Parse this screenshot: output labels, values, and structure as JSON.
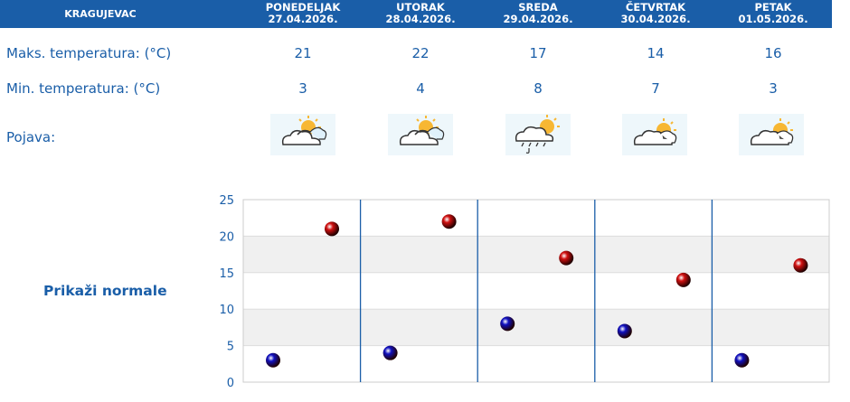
{
  "header": {
    "city": "KRAGUJEVAC",
    "days": [
      {
        "name": "PONEDELJAK",
        "date": "27.04.2026."
      },
      {
        "name": "UTORAK",
        "date": "28.04.2026."
      },
      {
        "name": "SREDA",
        "date": "29.04.2026."
      },
      {
        "name": "ČETVRTAK",
        "date": "30.04.2026."
      },
      {
        "name": "PETAK",
        "date": "01.05.2026."
      }
    ]
  },
  "rows": {
    "max_label": "Maks. temperatura: (°C)",
    "min_label": "Min. temperatura: (°C)",
    "phen_label": "Pojava:"
  },
  "forecast": [
    {
      "max": "21",
      "min": "3",
      "icon": "partly-cloudy-icon"
    },
    {
      "max": "22",
      "min": "4",
      "icon": "partly-cloudy-icon"
    },
    {
      "max": "17",
      "min": "8",
      "icon": "rain-shower-icon"
    },
    {
      "max": "14",
      "min": "7",
      "icon": "cloudy-sun-icon"
    },
    {
      "max": "16",
      "min": "3",
      "icon": "cloudy-sun-icon"
    }
  ],
  "normals_label": "Prikaži normale",
  "chart_data": {
    "type": "scatter",
    "ylim": [
      0,
      25
    ],
    "yticks": [
      "0",
      "5",
      "10",
      "15",
      "20",
      "25"
    ],
    "series": [
      {
        "values": [
          3,
          4,
          8,
          7,
          3
        ],
        "color": "#1010c0"
      },
      {
        "values": [
          21,
          22,
          17,
          14,
          16
        ],
        "color": "#d01010"
      }
    ]
  },
  "colors": {
    "accent": "#1a5ea8",
    "grid_band": "#f0f0f0"
  }
}
